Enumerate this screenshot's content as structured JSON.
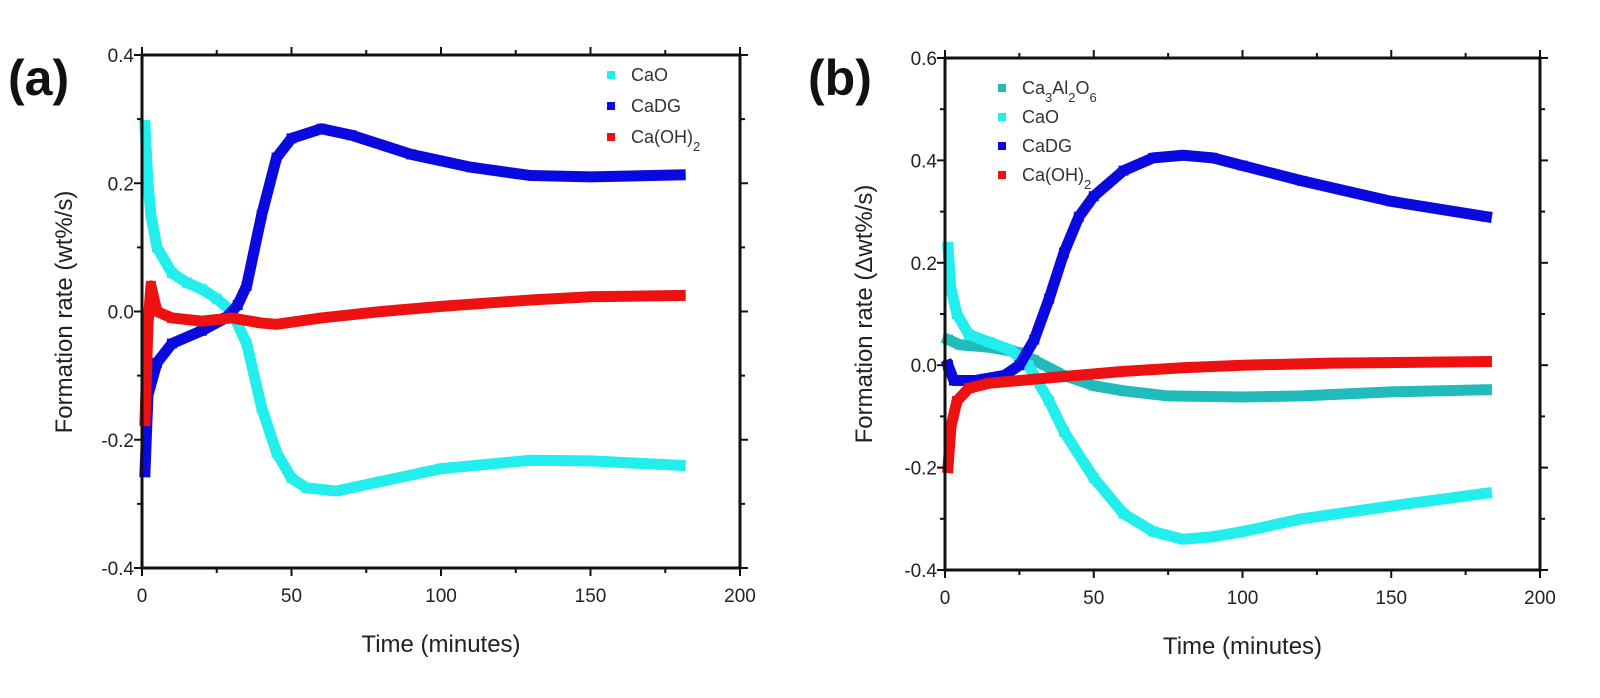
{
  "chart_data": [
    {
      "type": "scatter",
      "panel_label": "(a)",
      "xlabel": "Time (minutes)",
      "ylabel": "Formation rate (wt%/s)",
      "xlim": [
        0,
        200
      ],
      "ylim": [
        -0.4,
        0.4
      ],
      "xticks": [
        0,
        50,
        100,
        150,
        200
      ],
      "yticks": [
        -0.4,
        -0.2,
        0.0,
        0.2,
        0.4
      ],
      "ytick_labels": [
        "-0.4",
        "-0.2",
        "0.0",
        "0.2",
        "0.4"
      ],
      "legend_position": "top-right",
      "series": [
        {
          "name": "CaO",
          "color": "#22eeee",
          "x": [
            1,
            2,
            3,
            5,
            10,
            15,
            20,
            25,
            30,
            35,
            40,
            45,
            50,
            55,
            65,
            80,
            100,
            130,
            150,
            180
          ],
          "y": [
            0.29,
            0.2,
            0.15,
            0.1,
            0.06,
            0.045,
            0.035,
            0.02,
            0.0,
            -0.05,
            -0.15,
            -0.22,
            -0.26,
            -0.275,
            -0.28,
            -0.265,
            -0.245,
            -0.232,
            -0.233,
            -0.24
          ]
        },
        {
          "name": "CaDG",
          "color": "#0a0ae0",
          "x": [
            1,
            2,
            5,
            10,
            20,
            28,
            32,
            35,
            40,
            45,
            50,
            60,
            70,
            90,
            110,
            130,
            150,
            180
          ],
          "y": [
            -0.25,
            -0.13,
            -0.08,
            -0.05,
            -0.03,
            -0.01,
            0.01,
            0.04,
            0.15,
            0.24,
            0.27,
            0.285,
            0.275,
            0.245,
            0.225,
            0.212,
            0.21,
            0.213
          ]
        },
        {
          "name": "Ca(OH)2",
          "color": "#ee1111",
          "x": [
            1,
            2,
            3,
            5,
            10,
            20,
            30,
            40,
            45,
            60,
            80,
            100,
            130,
            150,
            180
          ],
          "y": [
            -0.17,
            -0.02,
            0.04,
            0.0,
            -0.01,
            -0.015,
            -0.01,
            -0.018,
            -0.02,
            -0.01,
            0.0,
            0.008,
            0.018,
            0.023,
            0.025
          ]
        }
      ]
    },
    {
      "type": "scatter",
      "panel_label": "(b)",
      "xlabel": "Time (minutes)",
      "ylabel": "Formation rate (Δwt%/s)",
      "xlim": [
        0,
        200
      ],
      "ylim": [
        -0.4,
        0.6
      ],
      "xticks": [
        0,
        50,
        100,
        150,
        200
      ],
      "yticks": [
        -0.4,
        -0.2,
        0.0,
        0.2,
        0.4,
        0.6
      ],
      "ytick_labels": [
        "-0.4",
        "-0.2",
        "0.0",
        "0.2",
        "0.4",
        "0.6"
      ],
      "legend_position": "top-left",
      "series": [
        {
          "name": "Ca3Al2O6",
          "color": "#22bbbb",
          "x": [
            1,
            5,
            15,
            25,
            30,
            40,
            50,
            60,
            75,
            100,
            120,
            150,
            182
          ],
          "y": [
            0.05,
            0.04,
            0.035,
            0.025,
            0.01,
            -0.02,
            -0.04,
            -0.05,
            -0.06,
            -0.062,
            -0.06,
            -0.052,
            -0.048
          ]
        },
        {
          "name": "CaO",
          "color": "#22eeee",
          "x": [
            1,
            2,
            4,
            8,
            15,
            22,
            28,
            35,
            40,
            50,
            60,
            70,
            80,
            90,
            100,
            120,
            150,
            182
          ],
          "y": [
            0.23,
            0.15,
            0.1,
            0.06,
            0.045,
            0.03,
            0.0,
            -0.07,
            -0.13,
            -0.22,
            -0.29,
            -0.325,
            -0.34,
            -0.335,
            -0.325,
            -0.3,
            -0.275,
            -0.25
          ]
        },
        {
          "name": "CaDG",
          "color": "#0a0ae0",
          "x": [
            1,
            3,
            10,
            20,
            25,
            30,
            35,
            40,
            45,
            50,
            60,
            70,
            80,
            90,
            100,
            120,
            150,
            182
          ],
          "y": [
            0.0,
            -0.03,
            -0.03,
            -0.02,
            0.0,
            0.05,
            0.13,
            0.22,
            0.29,
            0.33,
            0.38,
            0.405,
            0.41,
            0.405,
            0.39,
            0.36,
            0.32,
            0.29
          ]
        },
        {
          "name": "Ca(OH)2",
          "color": "#ee1111",
          "x": [
            1,
            2,
            4,
            8,
            15,
            25,
            40,
            60,
            80,
            100,
            130,
            182
          ],
          "y": [
            -0.2,
            -0.12,
            -0.07,
            -0.045,
            -0.035,
            -0.03,
            -0.022,
            -0.012,
            -0.005,
            0.0,
            0.004,
            0.007
          ]
        }
      ]
    }
  ]
}
